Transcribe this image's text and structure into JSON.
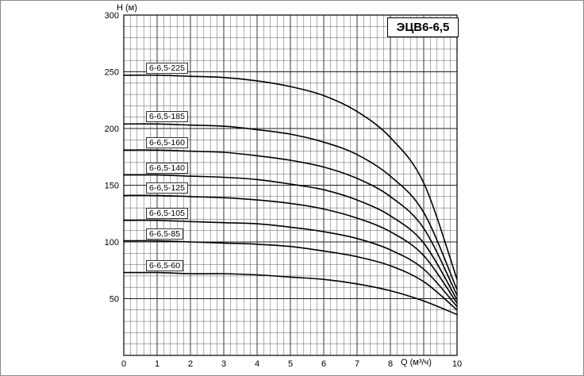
{
  "chart_data": {
    "type": "line",
    "title": "ЭЦВ6-6,5",
    "xlabel": "Q (м³/ч)",
    "ylabel": "H (м)",
    "xlim": [
      0,
      10
    ],
    "ylim": [
      0,
      300
    ],
    "grid": {
      "x_minor": 0.2,
      "x_major": 1,
      "y_minor": 10,
      "y_major": 50
    },
    "legend_position": "labels-on-curves",
    "x": [
      0,
      1,
      2,
      3,
      4,
      5,
      6,
      7,
      8,
      9,
      10
    ],
    "x_ticks": [
      {
        "v": 0,
        "t": "0"
      },
      {
        "v": 1,
        "t": "1"
      },
      {
        "v": 2,
        "t": "2"
      },
      {
        "v": 3,
        "t": "3"
      },
      {
        "v": 4,
        "t": "4"
      },
      {
        "v": 5,
        "t": "5"
      },
      {
        "v": 6,
        "t": "6"
      },
      {
        "v": 7,
        "t": "7"
      },
      {
        "v": 8,
        "t": "8"
      },
      {
        "v": 10,
        "t": "10"
      }
    ],
    "y_ticks": [
      50,
      100,
      150,
      200,
      250,
      300
    ],
    "series": [
      {
        "name": "6-6,5-225",
        "values": [
          247,
          247,
          246,
          245,
          242,
          237,
          229,
          215,
          192,
          152,
          67
        ]
      },
      {
        "name": "6-6,5-185",
        "values": [
          204,
          204,
          203,
          202,
          199,
          195,
          188,
          177,
          158,
          126,
          58
        ]
      },
      {
        "name": "6-6,5-160",
        "values": [
          181,
          181,
          180,
          179,
          176,
          172,
          166,
          156,
          140,
          112,
          53
        ]
      },
      {
        "name": "6-6,5-140",
        "values": [
          159,
          159,
          158,
          157,
          155,
          151,
          146,
          137,
          123,
          99,
          49
        ]
      },
      {
        "name": "6-6,5-125",
        "values": [
          141,
          141,
          140,
          139,
          137,
          134,
          129,
          121,
          109,
          88,
          46
        ]
      },
      {
        "name": "6-6,5-105",
        "values": [
          119,
          119,
          118,
          117,
          116,
          113,
          109,
          103,
          93,
          76,
          43
        ]
      },
      {
        "name": "6-6,5-85",
        "values": [
          101,
          101,
          100,
          99,
          98,
          96,
          92,
          87,
          79,
          65,
          40
        ]
      },
      {
        "name": "6-6,5-60",
        "values": [
          73,
          73,
          72,
          72,
          71,
          69,
          67,
          63,
          57,
          48,
          36
        ]
      }
    ]
  }
}
